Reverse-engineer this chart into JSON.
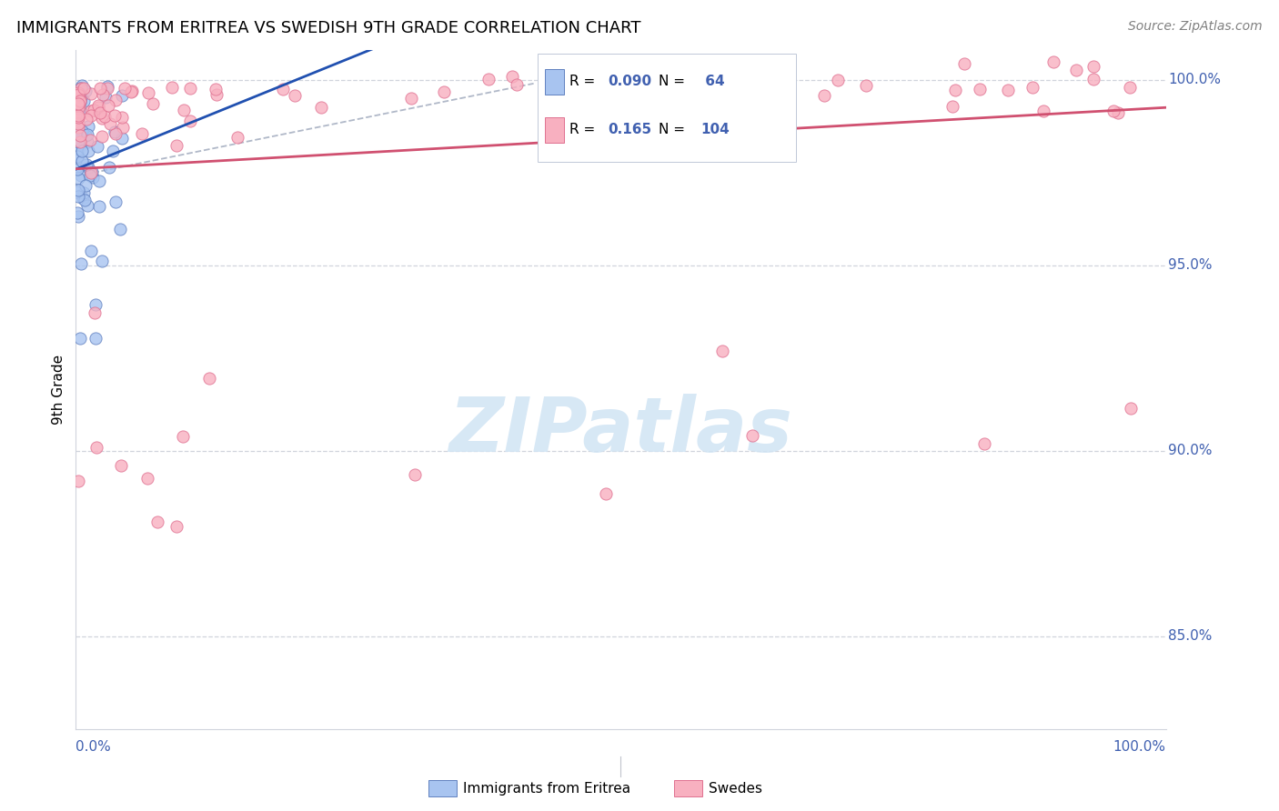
{
  "title": "IMMIGRANTS FROM ERITREA VS SWEDISH 9TH GRADE CORRELATION CHART",
  "source": "Source: ZipAtlas.com",
  "ylabel": "9th Grade",
  "xlim": [
    0.0,
    1.0
  ],
  "ylim": [
    0.825,
    1.008
  ],
  "ytick_values": [
    1.0,
    0.95,
    0.9,
    0.85
  ],
  "ytick_labels": [
    "100.0%",
    "95.0%",
    "90.0%",
    "85.0%"
  ],
  "blue_R": 0.09,
  "blue_N": 64,
  "pink_R": 0.165,
  "pink_N": 104,
  "blue_color_fill": "#a8c4f0",
  "blue_color_edge": "#6080c0",
  "pink_color_fill": "#f8b0c0",
  "pink_color_edge": "#e07090",
  "blue_line_color": "#2050b0",
  "pink_line_color": "#d05070",
  "dash_line_color": "#b0b8c8",
  "watermark_color": "#d0e4f4",
  "axis_label_color": "#4060b0",
  "grid_color": "#d0d4dc"
}
